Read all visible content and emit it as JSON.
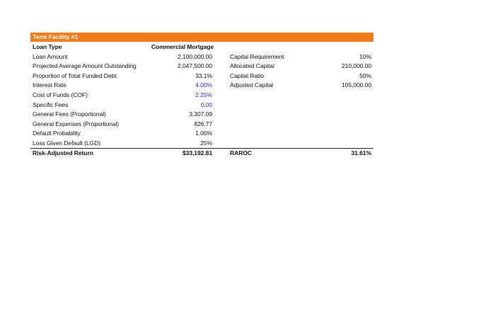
{
  "sheet": {
    "title": "Term Facility #1",
    "header": {
      "label": "Loan Type",
      "value": "Commercial Mortgage"
    },
    "rows": [
      {
        "label": "Loan Amount",
        "value": "2,100,000.00",
        "right_label": "Capital Requirement",
        "right_value": "10%"
      },
      {
        "label": "Projected Average Amount Outstanding",
        "value": "2,047,500.00",
        "right_label": "Allocated Capital",
        "right_value": "210,000.00"
      },
      {
        "label": "Proportion of Total Funded Debt",
        "value": "33.1%",
        "right_label": "Capital Ratio",
        "right_value": "50%"
      },
      {
        "label": "Interest Rate",
        "value": "4.00%",
        "color": "#2b2bd6",
        "right_label": "Adjusted Capital",
        "right_value": "105,000.00"
      },
      {
        "label": "Cost of Funds (COF)",
        "value": "2.25%",
        "color": "#2b2bd6"
      },
      {
        "label": "Specific Fees",
        "value": "0.00",
        "color": "#2b2bd6"
      },
      {
        "label": "General Fees (Proportional)",
        "value": "3,307.09"
      },
      {
        "label": "General Expenses (Proportional)",
        "value": "826.77"
      },
      {
        "label": "Default Probability",
        "value": "1.00%"
      },
      {
        "label": "Loss Given Default (LGD)",
        "value": "25%"
      }
    ],
    "total": {
      "label": "Risk-Adjusted Return",
      "value": "$33,192.81",
      "right_label": "RAROC",
      "right_value": "31.61%"
    }
  }
}
